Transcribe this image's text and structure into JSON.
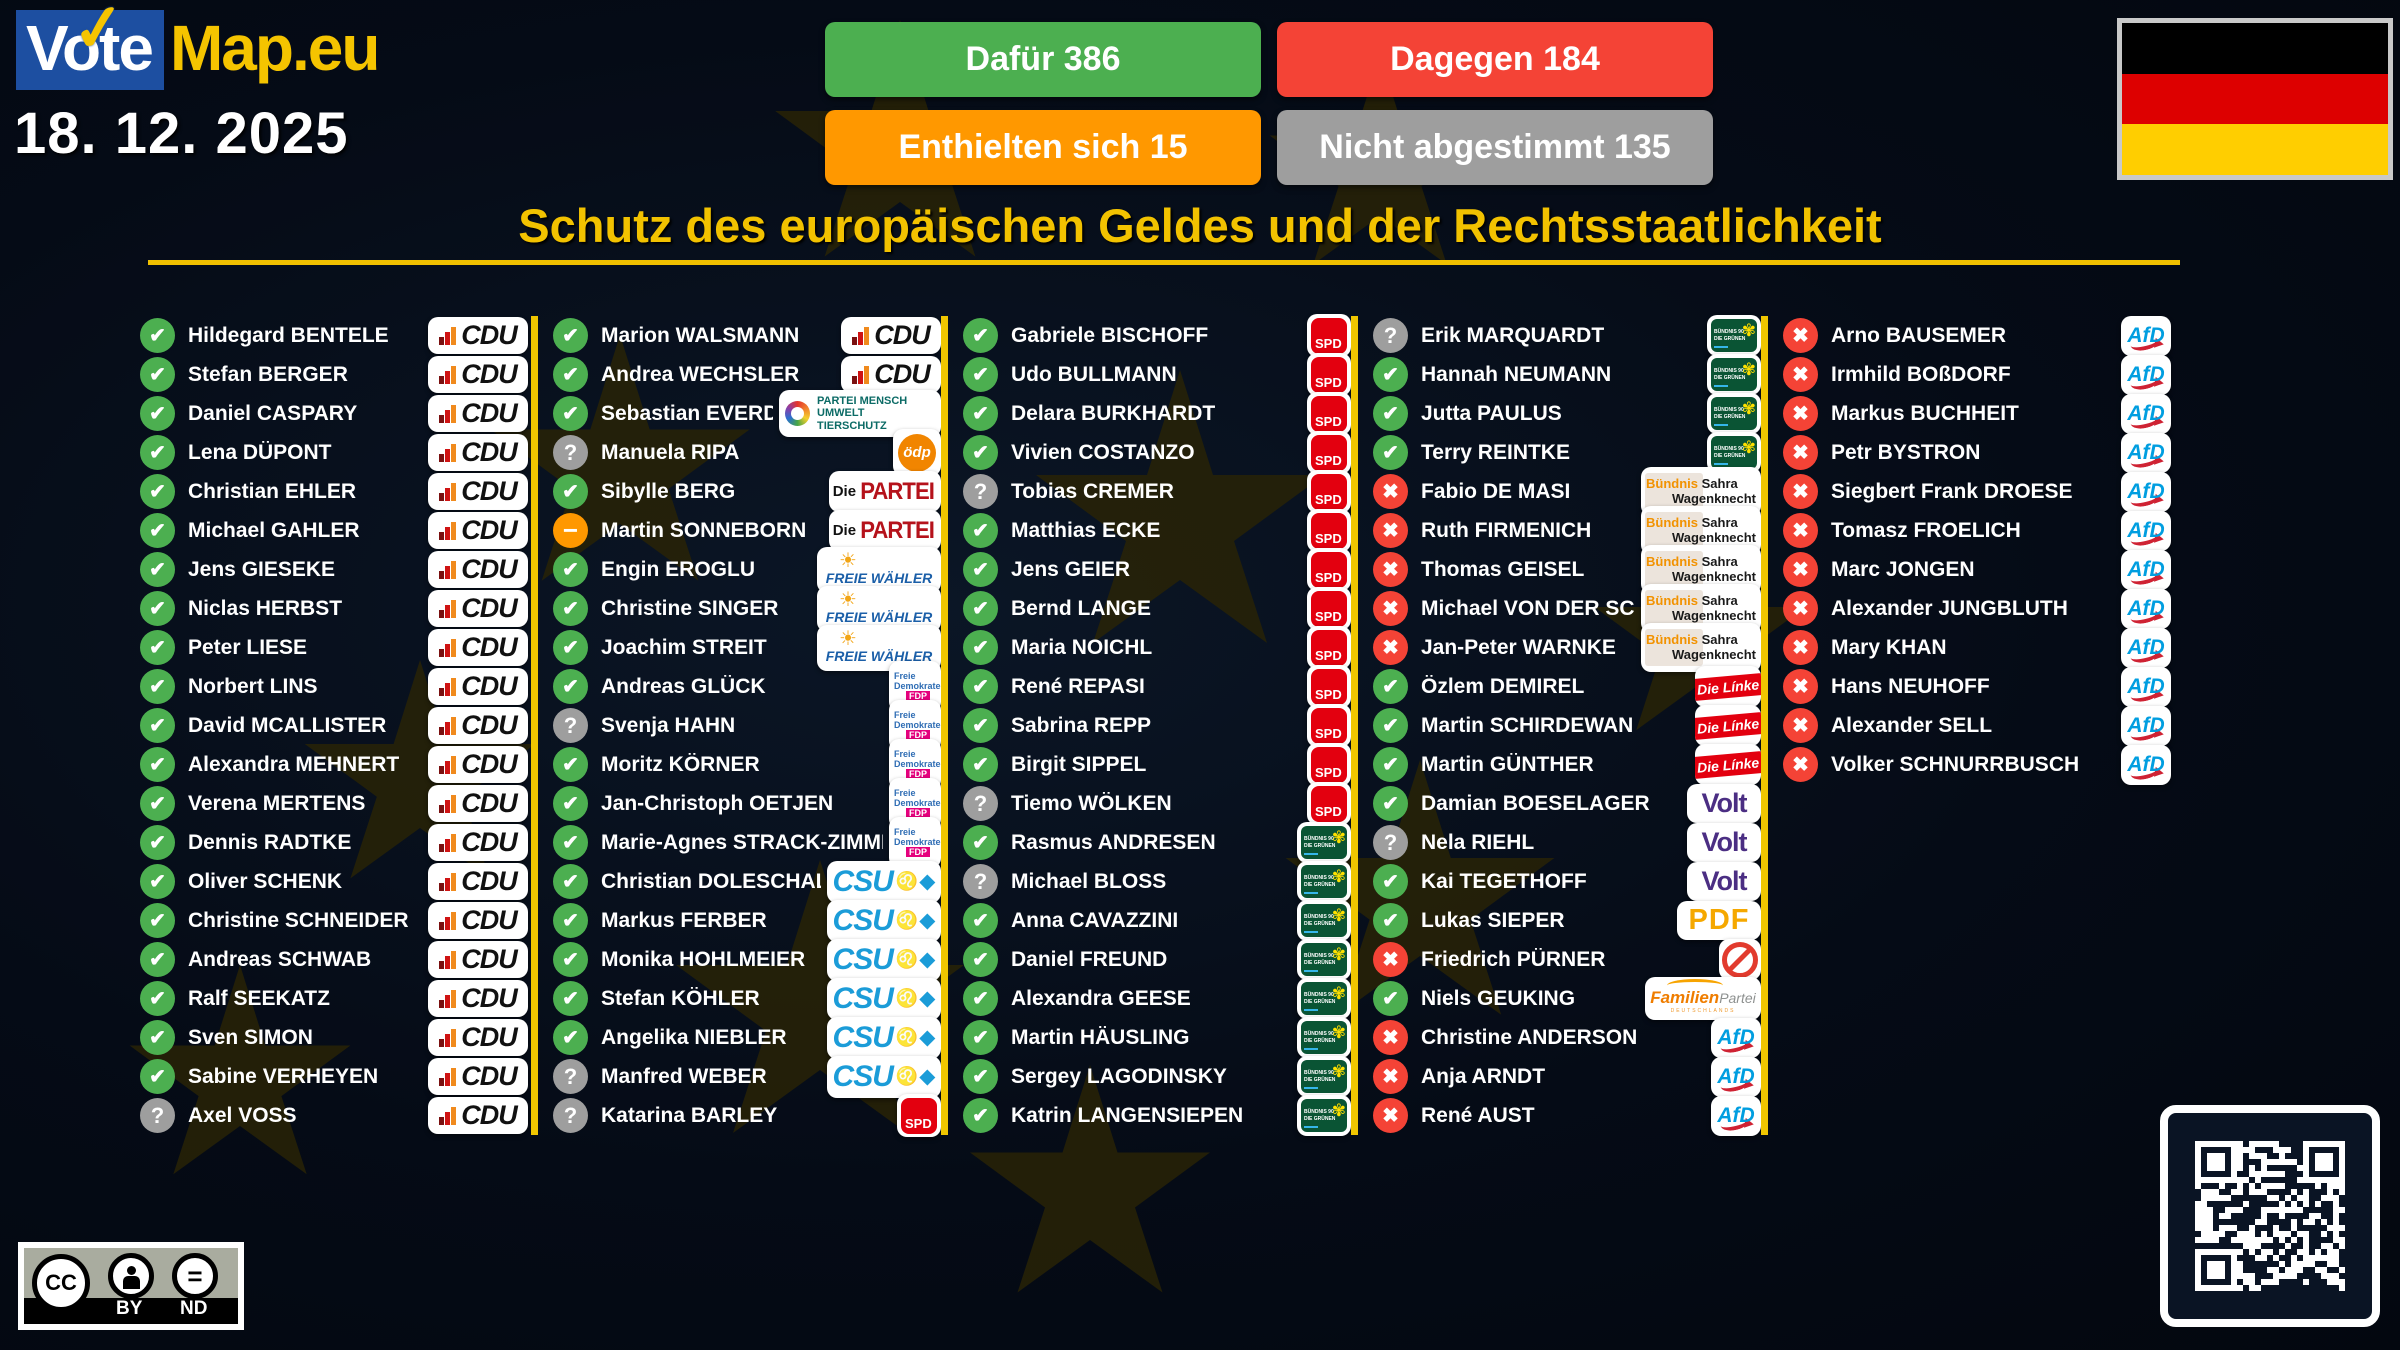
{
  "header": {
    "logo": {
      "vote": "Vote",
      "map": "Map.eu"
    },
    "date": "18. 12. 2025",
    "title": "Schutz des europäischen Geldes und der Rechtsstaatlichkeit",
    "buttons": [
      {
        "id": "for",
        "label": "Dafür 386",
        "color": "#4caf50"
      },
      {
        "id": "against",
        "label": "Dagegen 184",
        "color": "#f44336"
      },
      {
        "id": "abstain",
        "label": "Enthielten sich 15",
        "color": "#ff9800"
      },
      {
        "id": "novote",
        "label": "Nicht abgestimmt 135",
        "color": "#9e9e9e"
      }
    ]
  },
  "colors": {
    "yes": "#4caf50",
    "no": "#f44336",
    "abstain": "#ff9800",
    "novote": "#9e9e9e",
    "accent": "#f0c000"
  },
  "vote_icons": {
    "y": "✔",
    "n": "✖",
    "a": "−",
    "q": "?"
  },
  "license": {
    "cc": "CC",
    "by": "BY",
    "nd": "ND"
  },
  "parties": {
    "CDU": {
      "label": "CDU"
    },
    "CSU": {
      "label": "CSU",
      "lion": "♌",
      "diamond": "◆"
    },
    "SPD": {
      "label": "SPD"
    },
    "TIER": {
      "line1": "PARTEI MENSCH",
      "line2": "UMWELT TIERSCHUTZ"
    },
    "OEDP": {
      "label": "ödp"
    },
    "PARTEI": {
      "prefix": "Die",
      "label": "PARTEI"
    },
    "FW": {
      "label": "FREIE WÄHLER",
      "sun": "☀"
    },
    "FDP": {
      "line1": "Freie",
      "line2": "Demokraten",
      "badge": "FDP"
    },
    "GRUENE": {
      "line1": "BÜNDNIS 90",
      "line2": "DIE GRÜNEN",
      "flower": "✾"
    },
    "BSW": {
      "word1": "Bündnis",
      "word2": "Sahra",
      "word3": "Wagenknecht"
    },
    "LINKE": {
      "label": "Die Línke"
    },
    "VOLT": {
      "label": "Volt"
    },
    "PDF": {
      "label": "PDF"
    },
    "NONE": {},
    "FAM": {
      "word1": "Familien",
      "word2": "Partei",
      "word3": "DEUTSCHLANDS"
    },
    "AFD": {
      "label": "AfD"
    }
  },
  "columns": [
    [
      {
        "name": "Hildegard BENTELE",
        "vote": "y",
        "party": "CDU"
      },
      {
        "name": "Stefan BERGER",
        "vote": "y",
        "party": "CDU"
      },
      {
        "name": "Daniel CASPARY",
        "vote": "y",
        "party": "CDU"
      },
      {
        "name": "Lena DÜPONT",
        "vote": "y",
        "party": "CDU"
      },
      {
        "name": "Christian EHLER",
        "vote": "y",
        "party": "CDU"
      },
      {
        "name": "Michael GAHLER",
        "vote": "y",
        "party": "CDU"
      },
      {
        "name": "Jens GIESEKE",
        "vote": "y",
        "party": "CDU"
      },
      {
        "name": "Niclas HERBST",
        "vote": "y",
        "party": "CDU"
      },
      {
        "name": "Peter LIESE",
        "vote": "y",
        "party": "CDU"
      },
      {
        "name": "Norbert LINS",
        "vote": "y",
        "party": "CDU"
      },
      {
        "name": "David MCALLISTER",
        "vote": "y",
        "party": "CDU"
      },
      {
        "name": "Alexandra MEHNERT",
        "vote": "y",
        "party": "CDU"
      },
      {
        "name": "Verena MERTENS",
        "vote": "y",
        "party": "CDU"
      },
      {
        "name": "Dennis RADTKE",
        "vote": "y",
        "party": "CDU"
      },
      {
        "name": "Oliver SCHENK",
        "vote": "y",
        "party": "CDU"
      },
      {
        "name": "Christine SCHNEIDER",
        "vote": "y",
        "party": "CDU"
      },
      {
        "name": "Andreas SCHWAB",
        "vote": "y",
        "party": "CDU"
      },
      {
        "name": "Ralf SEEKATZ",
        "vote": "y",
        "party": "CDU"
      },
      {
        "name": "Sven SIMON",
        "vote": "y",
        "party": "CDU"
      },
      {
        "name": "Sabine VERHEYEN",
        "vote": "y",
        "party": "CDU"
      },
      {
        "name": "Axel VOSS",
        "vote": "q",
        "party": "CDU"
      }
    ],
    [
      {
        "name": "Marion WALSMANN",
        "vote": "y",
        "party": "CDU"
      },
      {
        "name": "Andrea WECHSLER",
        "vote": "y",
        "party": "CDU"
      },
      {
        "name": "Sebastian EVERDING",
        "vote": "y",
        "party": "TIER"
      },
      {
        "name": "Manuela RIPA",
        "vote": "q",
        "party": "OEDP"
      },
      {
        "name": "Sibylle BERG",
        "vote": "y",
        "party": "PARTEI"
      },
      {
        "name": "Martin SONNEBORN",
        "vote": "a",
        "party": "PARTEI"
      },
      {
        "name": "Engin EROGLU",
        "vote": "y",
        "party": "FW"
      },
      {
        "name": "Christine SINGER",
        "vote": "y",
        "party": "FW"
      },
      {
        "name": "Joachim STREIT",
        "vote": "y",
        "party": "FW"
      },
      {
        "name": "Andreas GLÜCK",
        "vote": "y",
        "party": "FDP"
      },
      {
        "name": "Svenja HAHN",
        "vote": "q",
        "party": "FDP"
      },
      {
        "name": "Moritz KÖRNER",
        "vote": "y",
        "party": "FDP"
      },
      {
        "name": "Jan-Christoph OETJEN",
        "vote": "y",
        "party": "FDP"
      },
      {
        "name": "Marie-Agnes STRACK-ZIMMERMANN",
        "vote": "y",
        "party": "FDP"
      },
      {
        "name": "Christian DOLESCHAL",
        "vote": "y",
        "party": "CSU"
      },
      {
        "name": "Markus FERBER",
        "vote": "y",
        "party": "CSU"
      },
      {
        "name": "Monika HOHLMEIER",
        "vote": "y",
        "party": "CSU"
      },
      {
        "name": "Stefan KÖHLER",
        "vote": "y",
        "party": "CSU"
      },
      {
        "name": "Angelika NIEBLER",
        "vote": "y",
        "party": "CSU"
      },
      {
        "name": "Manfred WEBER",
        "vote": "q",
        "party": "CSU"
      },
      {
        "name": "Katarina BARLEY",
        "vote": "q",
        "party": "SPD"
      }
    ],
    [
      {
        "name": "Gabriele BISCHOFF",
        "vote": "y",
        "party": "SPD"
      },
      {
        "name": "Udo BULLMANN",
        "vote": "y",
        "party": "SPD"
      },
      {
        "name": "Delara BURKHARDT",
        "vote": "y",
        "party": "SPD"
      },
      {
        "name": "Vivien COSTANZO",
        "vote": "y",
        "party": "SPD"
      },
      {
        "name": "Tobias CREMER",
        "vote": "q",
        "party": "SPD"
      },
      {
        "name": "Matthias ECKE",
        "vote": "y",
        "party": "SPD"
      },
      {
        "name": "Jens GEIER",
        "vote": "y",
        "party": "SPD"
      },
      {
        "name": "Bernd LANGE",
        "vote": "y",
        "party": "SPD"
      },
      {
        "name": "Maria NOICHL",
        "vote": "y",
        "party": "SPD"
      },
      {
        "name": "René REPASI",
        "vote": "y",
        "party": "SPD"
      },
      {
        "name": "Sabrina REPP",
        "vote": "y",
        "party": "SPD"
      },
      {
        "name": "Birgit SIPPEL",
        "vote": "y",
        "party": "SPD"
      },
      {
        "name": "Tiemo WÖLKEN",
        "vote": "q",
        "party": "SPD"
      },
      {
        "name": "Rasmus ANDRESEN",
        "vote": "y",
        "party": "GRUENE"
      },
      {
        "name": "Michael BLOSS",
        "vote": "q",
        "party": "GRUENE"
      },
      {
        "name": "Anna CAVAZZINI",
        "vote": "y",
        "party": "GRUENE"
      },
      {
        "name": "Daniel FREUND",
        "vote": "y",
        "party": "GRUENE"
      },
      {
        "name": "Alexandra GEESE",
        "vote": "y",
        "party": "GRUENE"
      },
      {
        "name": "Martin HÄUSLING",
        "vote": "y",
        "party": "GRUENE"
      },
      {
        "name": "Sergey LAGODINSKY",
        "vote": "y",
        "party": "GRUENE"
      },
      {
        "name": "Katrin LANGENSIEPEN",
        "vote": "y",
        "party": "GRUENE"
      }
    ],
    [
      {
        "name": "Erik MARQUARDT",
        "vote": "q",
        "party": "GRUENE"
      },
      {
        "name": "Hannah NEUMANN",
        "vote": "y",
        "party": "GRUENE"
      },
      {
        "name": "Jutta PAULUS",
        "vote": "y",
        "party": "GRUENE"
      },
      {
        "name": "Terry REINTKE",
        "vote": "y",
        "party": "GRUENE"
      },
      {
        "name": "Fabio DE MASI",
        "vote": "n",
        "party": "BSW"
      },
      {
        "name": "Ruth FIRMENICH",
        "vote": "n",
        "party": "BSW"
      },
      {
        "name": "Thomas GEISEL",
        "vote": "n",
        "party": "BSW"
      },
      {
        "name": "Michael VON DER SCHULENBURG",
        "vote": "n",
        "party": "BSW"
      },
      {
        "name": "Jan-Peter WARNKE",
        "vote": "n",
        "party": "BSW"
      },
      {
        "name": "Özlem DEMIREL",
        "vote": "y",
        "party": "LINKE"
      },
      {
        "name": "Martin SCHIRDEWAN",
        "vote": "y",
        "party": "LINKE"
      },
      {
        "name": "Martin GÜNTHER",
        "vote": "y",
        "party": "LINKE"
      },
      {
        "name": "Damian BOESELAGER",
        "vote": "y",
        "party": "VOLT"
      },
      {
        "name": "Nela RIEHL",
        "vote": "q",
        "party": "VOLT"
      },
      {
        "name": "Kai TEGETHOFF",
        "vote": "y",
        "party": "VOLT"
      },
      {
        "name": "Lukas SIEPER",
        "vote": "y",
        "party": "PDF"
      },
      {
        "name": "Friedrich PÜRNER",
        "vote": "n",
        "party": "NONE"
      },
      {
        "name": "Niels GEUKING",
        "vote": "y",
        "party": "FAM"
      },
      {
        "name": "Christine ANDERSON",
        "vote": "n",
        "party": "AFD"
      },
      {
        "name": "Anja ARNDT",
        "vote": "n",
        "party": "AFD"
      },
      {
        "name": "René AUST",
        "vote": "n",
        "party": "AFD"
      }
    ],
    [
      {
        "name": "Arno BAUSEMER",
        "vote": "n",
        "party": "AFD"
      },
      {
        "name": "Irmhild BOßDORF",
        "vote": "n",
        "party": "AFD"
      },
      {
        "name": "Markus BUCHHEIT",
        "vote": "n",
        "party": "AFD"
      },
      {
        "name": "Petr BYSTRON",
        "vote": "n",
        "party": "AFD"
      },
      {
        "name": "Siegbert Frank DROESE",
        "vote": "n",
        "party": "AFD"
      },
      {
        "name": "Tomasz FROELICH",
        "vote": "n",
        "party": "AFD"
      },
      {
        "name": "Marc JONGEN",
        "vote": "n",
        "party": "AFD"
      },
      {
        "name": "Alexander JUNGBLUTH",
        "vote": "n",
        "party": "AFD"
      },
      {
        "name": "Mary KHAN",
        "vote": "n",
        "party": "AFD"
      },
      {
        "name": "Hans NEUHOFF",
        "vote": "n",
        "party": "AFD"
      },
      {
        "name": "Alexander SELL",
        "vote": "n",
        "party": "AFD"
      },
      {
        "name": "Volker SCHNURRBUSCH",
        "vote": "n",
        "party": "AFD"
      }
    ]
  ]
}
